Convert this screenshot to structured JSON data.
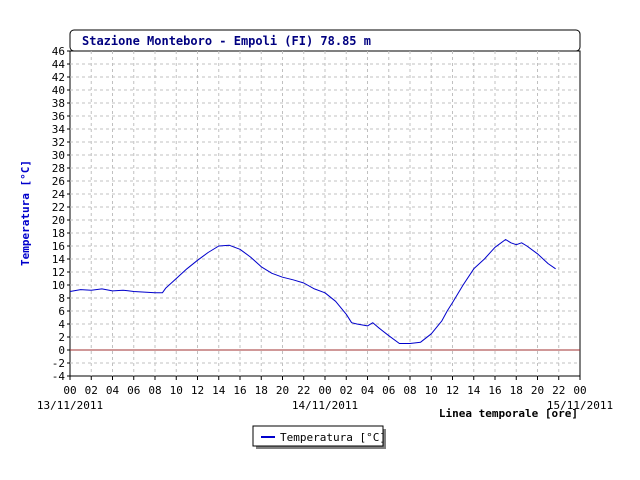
{
  "colors": {
    "series": "#0000cc",
    "zero_line": "#a03030",
    "grid": "#c0c0c0",
    "ylabel": "#0000cc",
    "title": "#000080"
  },
  "chart_data": {
    "type": "line",
    "title": "Stazione Monteboro - Empoli (FI) 78.85 m",
    "ylabel": "Temperatura [°C]",
    "xlabel": "Linea temporale [ore]",
    "ylim": [
      -4,
      46
    ],
    "y_ticks": [
      "46",
      "44",
      "42",
      "40",
      "38",
      "36",
      "34",
      "32",
      "30",
      "28",
      "26",
      "24",
      "22",
      "20",
      "18",
      "16",
      "14",
      "12",
      "10",
      "8",
      "6",
      "4",
      "2",
      "0",
      "-2",
      "-4"
    ],
    "x_hour_ticks": [
      "00",
      "02",
      "04",
      "06",
      "08",
      "10",
      "12",
      "14",
      "16",
      "18",
      "20",
      "22",
      "00",
      "02",
      "04",
      "06",
      "08",
      "10",
      "12",
      "14",
      "16",
      "18",
      "20",
      "22",
      "00"
    ],
    "x_date_labels": [
      "13/11/2011",
      "14/11/2011",
      "15/11/2011"
    ],
    "xlim_hours": [
      0,
      48
    ],
    "grid": true,
    "reference_line_y": 0,
    "legend_position": "bottom-center",
    "series": [
      {
        "name": "Temperatura [°C]",
        "points": [
          [
            0,
            9.0
          ],
          [
            1,
            9.3
          ],
          [
            2,
            9.2
          ],
          [
            3,
            9.4
          ],
          [
            4,
            9.1
          ],
          [
            5,
            9.2
          ],
          [
            6,
            9.0
          ],
          [
            7,
            8.9
          ],
          [
            8,
            8.8
          ],
          [
            8.7,
            8.8
          ],
          [
            9,
            9.5
          ],
          [
            10,
            11.0
          ],
          [
            11,
            12.5
          ],
          [
            12,
            13.8
          ],
          [
            13,
            15.0
          ],
          [
            14,
            16.0
          ],
          [
            15,
            16.1
          ],
          [
            16,
            15.5
          ],
          [
            17,
            14.3
          ],
          [
            18,
            12.8
          ],
          [
            19,
            11.8
          ],
          [
            20,
            11.2
          ],
          [
            21,
            10.8
          ],
          [
            22,
            10.3
          ],
          [
            23,
            9.4
          ],
          [
            24,
            8.8
          ],
          [
            25,
            7.5
          ],
          [
            26,
            5.5
          ],
          [
            26.5,
            4.2
          ],
          [
            27,
            4.0
          ],
          [
            28,
            3.7
          ],
          [
            28.5,
            4.2
          ],
          [
            29,
            3.5
          ],
          [
            30,
            2.2
          ],
          [
            31,
            1.0
          ],
          [
            32,
            1.0
          ],
          [
            33,
            1.2
          ],
          [
            34,
            2.5
          ],
          [
            35,
            4.5
          ],
          [
            35.5,
            6.0
          ],
          [
            36,
            7.3
          ],
          [
            37,
            10.0
          ],
          [
            38,
            12.5
          ],
          [
            39,
            14.0
          ],
          [
            40,
            15.8
          ],
          [
            41,
            17.0
          ],
          [
            41.5,
            16.5
          ],
          [
            42,
            16.2
          ],
          [
            42.5,
            16.5
          ],
          [
            43,
            16.0
          ],
          [
            44,
            14.8
          ],
          [
            45,
            13.3
          ],
          [
            45.7,
            12.5
          ]
        ]
      }
    ]
  }
}
